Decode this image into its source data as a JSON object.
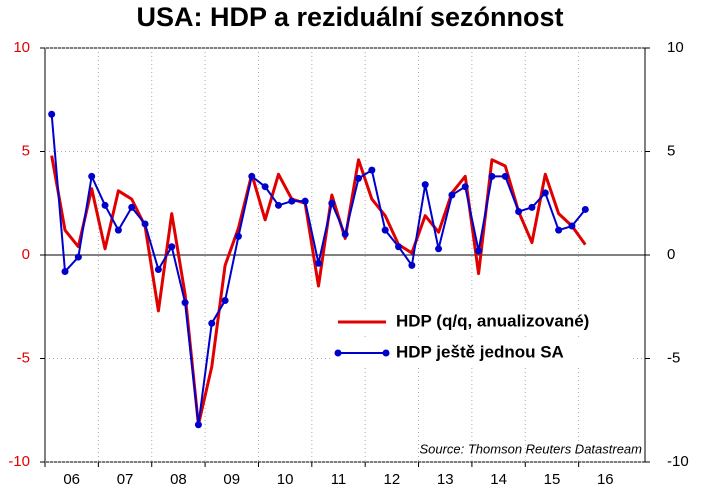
{
  "chart_data": {
    "type": "line",
    "title": "USA: HDP a reziduální sezónnost",
    "annotation": "Source: Thomson Reuters Datastream",
    "categories": [
      null,
      "06",
      null,
      null,
      null,
      "07",
      null,
      null,
      null,
      "08",
      null,
      null,
      null,
      "09",
      null,
      null,
      null,
      "10",
      null,
      null,
      null,
      "11",
      null,
      null,
      null,
      "12",
      null,
      null,
      null,
      "13",
      null,
      null,
      null,
      "14",
      null,
      null,
      null,
      "15",
      null,
      null,
      null,
      "16",
      null,
      null
    ],
    "series": [
      {
        "name": "HDP (q/q, anualizované)",
        "color": "#e00000",
        "axis": "y",
        "values": [
          4.8,
          1.2,
          0.4,
          3.2,
          0.3,
          3.1,
          2.7,
          1.4,
          -2.7,
          2.0,
          -1.9,
          -8.2,
          -5.4,
          -0.5,
          1.3,
          3.9,
          1.7,
          3.9,
          2.7,
          2.5,
          -1.5,
          2.9,
          0.8,
          4.6,
          2.7,
          1.9,
          0.5,
          0.1,
          1.9,
          1.1,
          3.0,
          3.8,
          -0.9,
          4.6,
          4.3,
          2.1,
          0.6,
          3.9,
          2.0,
          1.4,
          0.5,
          null,
          null,
          null
        ]
      },
      {
        "name": "HDP ještě jednou SA",
        "color": "#0000cc",
        "axis": "y2",
        "markers": true,
        "values": [
          6.8,
          -0.8,
          -0.1,
          3.8,
          2.4,
          1.2,
          2.3,
          1.5,
          -0.7,
          0.4,
          -2.3,
          -8.2,
          -3.3,
          -2.2,
          0.9,
          3.8,
          3.3,
          2.4,
          2.6,
          2.6,
          -0.4,
          2.5,
          1.0,
          3.7,
          4.1,
          1.2,
          0.4,
          -0.5,
          3.4,
          0.3,
          2.9,
          3.3,
          0.2,
          3.8,
          3.8,
          2.1,
          2.3,
          3.0,
          1.2,
          1.4,
          2.2,
          null,
          null,
          null
        ]
      }
    ],
    "ylim": [
      -10,
      10
    ],
    "yticks": [
      -10,
      -5,
      0,
      5,
      10
    ],
    "ytick_color": "#e00000",
    "y2lim": [
      -10,
      10
    ],
    "y2ticks": [
      -10,
      -5,
      0,
      5,
      10
    ],
    "grid": true,
    "legend": "lower right"
  }
}
